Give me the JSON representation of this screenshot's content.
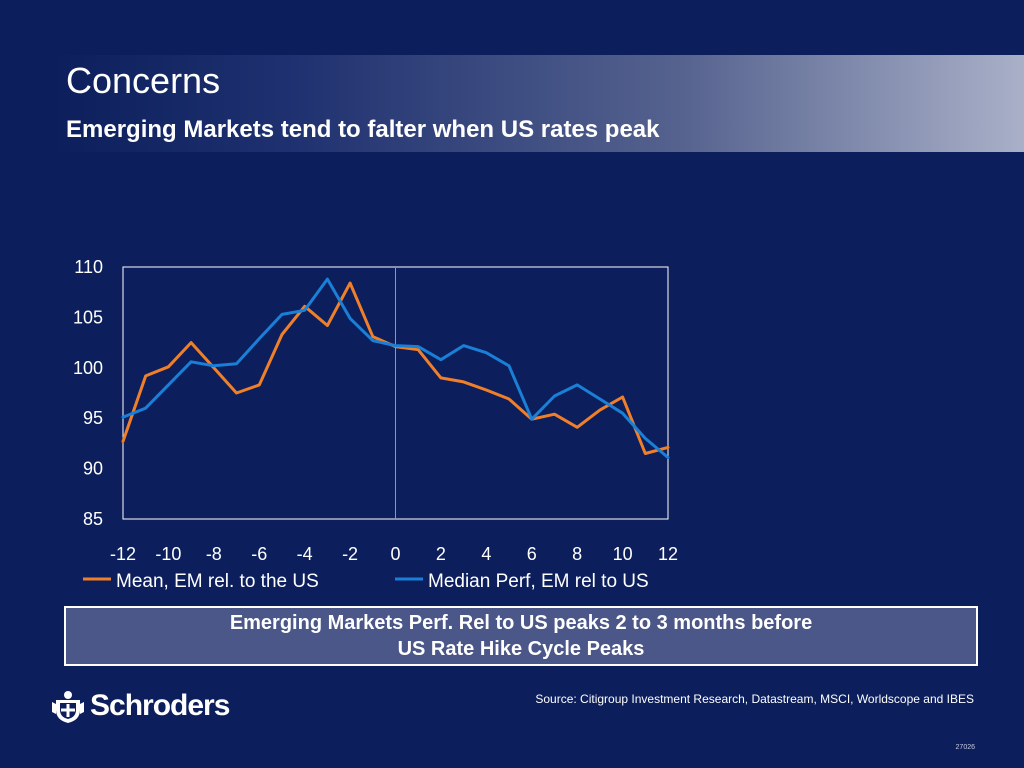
{
  "header": {
    "title": "Concerns",
    "subtitle": "Emerging Markets tend to falter when US rates peak"
  },
  "callout": {
    "line1": "Emerging Markets Perf. Rel to US peaks 2 to 3 months before",
    "line2": "US Rate Hike Cycle Peaks"
  },
  "footer": {
    "brand": "Schroders",
    "source": "Source: Citigroup Investment Research, Datastream, MSCI, Worldscope and IBES",
    "code": "27026"
  },
  "colors": {
    "background": "#0c1f5c",
    "mean_series": "#f07f2a",
    "median_series": "#1a7fd6",
    "plot_background": "#ffffff"
  },
  "chart_data": {
    "type": "line",
    "x": [
      -12,
      -11,
      -10,
      -9,
      -8,
      -7,
      -6,
      -5,
      -4,
      -3,
      -2,
      -1,
      0,
      1,
      2,
      3,
      4,
      5,
      6,
      7,
      8,
      9,
      10,
      11,
      12
    ],
    "x_ticks": [
      "-12",
      "-10",
      "-8",
      "-6",
      "-4",
      "-2",
      "0",
      "2",
      "4",
      "6",
      "8",
      "10",
      "12"
    ],
    "y_ticks": [
      "85",
      "90",
      "95",
      "100",
      "105",
      "110"
    ],
    "ylim": [
      85,
      110
    ],
    "xlim": [
      -12,
      12
    ],
    "vertical_marker_x": 0,
    "grid": false,
    "legend_position": "bottom",
    "series": [
      {
        "name": "Mean, EM rel. to the US",
        "color": "#f07f2a",
        "values": [
          92.7,
          99.2,
          100.1,
          102.5,
          100.0,
          97.5,
          98.3,
          103.3,
          106.1,
          104.2,
          108.4,
          103.1,
          102.1,
          101.8,
          99.0,
          98.6,
          97.8,
          96.9,
          94.9,
          95.4,
          94.1,
          95.8,
          97.1,
          91.5,
          92.1
        ]
      },
      {
        "name": "Median Perf, EM rel to US",
        "color": "#1a7fd6",
        "values": [
          95.1,
          96.0,
          98.3,
          100.6,
          100.2,
          100.4,
          102.9,
          105.3,
          105.7,
          108.8,
          104.9,
          102.7,
          102.2,
          102.1,
          100.8,
          102.2,
          101.5,
          100.2,
          94.9,
          97.2,
          98.3,
          96.9,
          95.5,
          93.0,
          91.1
        ]
      }
    ]
  }
}
